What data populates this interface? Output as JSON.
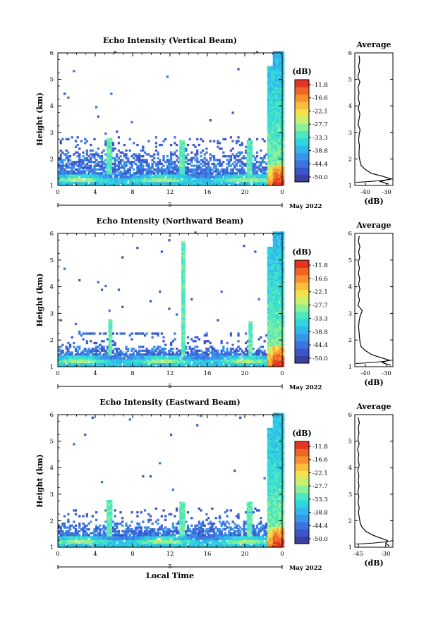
{
  "chart_data": [
    {
      "type": "heatmap",
      "title": "Echo Intensity (Vertical Beam)",
      "ylabel": "Height (km)",
      "ylim": [
        1,
        6
      ],
      "yticks": [
        "1",
        "2",
        "3",
        "4",
        "5",
        "6"
      ],
      "xlim": [
        0,
        24
      ],
      "xticks": [
        "0",
        "4",
        "8",
        "12",
        "16",
        "20",
        "0"
      ],
      "date_tick": "5",
      "date_label": "May 2022",
      "colorbar": {
        "label": "(dB)",
        "ticks": [
          "-11.8",
          "-16.6",
          "-22.1",
          "-27.7",
          "-33.3",
          "-38.8",
          "-44.4",
          "-50.0"
        ],
        "range": [
          -53,
          -8
        ]
      },
      "profile": {
        "title": "Average",
        "xlabel": "(dB)",
        "xticks": [
          "-40",
          "-30"
        ],
        "xlim": [
          -45,
          -27
        ],
        "heights": [
          1.05,
          1.15,
          1.25,
          1.35,
          1.45,
          1.6,
          1.75,
          1.9,
          2.1,
          2.3,
          2.5,
          2.7,
          2.9,
          3.1,
          3.3,
          3.5,
          3.7,
          3.9,
          4.1,
          4.3,
          4.5,
          4.7,
          4.9,
          5.1,
          5.3,
          5.5,
          5.7,
          5.9
        ],
        "values": [
          -29,
          -33,
          -28,
          -32,
          -37,
          -40,
          -42,
          -42.5,
          -43,
          -43,
          -42.8,
          -43.2,
          -43,
          -42.5,
          -43.5,
          -43,
          -42.6,
          -43.4,
          -42.8,
          -43.4,
          -43,
          -43.5,
          -42.6,
          -43.6,
          -42.8,
          -43.2,
          -42.7,
          -43
        ]
      }
    },
    {
      "type": "heatmap",
      "title": "Echo Intensity (Northward Beam)",
      "ylabel": "Height (km)",
      "ylim": [
        1,
        6
      ],
      "yticks": [
        "1",
        "2",
        "3",
        "4",
        "5",
        "6"
      ],
      "xlim": [
        0,
        24
      ],
      "xticks": [
        "0",
        "4",
        "8",
        "12",
        "16",
        "20",
        "0"
      ],
      "date_tick": "5",
      "date_label": "May 2022",
      "colorbar": {
        "label": "(dB)",
        "ticks": [
          "-11.8",
          "-16.6",
          "-22.1",
          "-27.7",
          "-33.3",
          "-38.8",
          "-44.4",
          "-50.0"
        ],
        "range": [
          -53,
          -8
        ]
      },
      "profile": {
        "title": "Average",
        "xlabel": "(dB)",
        "xticks": [
          "-40",
          "-30"
        ],
        "xlim": [
          -45,
          -27
        ],
        "heights": [
          1.05,
          1.15,
          1.25,
          1.35,
          1.45,
          1.6,
          1.75,
          1.9,
          2.1,
          2.3,
          2.5,
          2.7,
          2.9,
          3.1,
          3.3,
          3.5,
          3.7,
          3.9,
          4.1,
          4.3,
          4.5,
          4.7,
          4.9,
          5.1,
          5.3,
          5.5,
          5.7,
          5.9
        ],
        "values": [
          -28,
          -32,
          -29,
          -33,
          -37,
          -40,
          -42,
          -42.5,
          -42.8,
          -43,
          -43.2,
          -43,
          -42.5,
          -41.5,
          -43.5,
          -42.8,
          -43.4,
          -42.6,
          -43.2,
          -42.7,
          -43.3,
          -42.8,
          -43.4,
          -42.7,
          -43.2,
          -42.6,
          -43.3,
          -42.9
        ]
      }
    },
    {
      "type": "heatmap",
      "title": "Echo Intensity (Eastward Beam)",
      "ylabel": "Height (km)",
      "xlabel": "Local Time",
      "ylim": [
        1,
        6
      ],
      "yticks": [
        "1",
        "2",
        "3",
        "4",
        "5",
        "6"
      ],
      "xlim": [
        0,
        24
      ],
      "xticks": [
        "0",
        "4",
        "8",
        "12",
        "16",
        "20",
        "0"
      ],
      "date_tick": "5",
      "date_label": "May 2022",
      "colorbar": {
        "label": "(dB)",
        "ticks": [
          "-11.8",
          "-16.6",
          "-22.1",
          "-27.7",
          "-33.3",
          "-38.8",
          "-44.4",
          "-50.0"
        ],
        "range": [
          -53,
          -8
        ]
      },
      "profile": {
        "title": "Average",
        "xlabel": "(dB)",
        "xticks": [
          "-45",
          "-30"
        ],
        "xlim": [
          -47,
          -26
        ],
        "heights": [
          1.05,
          1.15,
          1.25,
          1.35,
          1.45,
          1.6,
          1.75,
          1.9,
          2.1,
          2.3,
          2.5,
          2.7,
          2.9,
          3.1,
          3.3,
          3.5,
          3.7,
          3.9,
          4.1,
          4.3,
          4.5,
          4.7,
          4.9,
          5.1,
          5.3,
          5.5,
          5.7,
          5.9
        ],
        "values": [
          -28,
          -30,
          -29,
          -33,
          -37,
          -41,
          -43,
          -44,
          -44.5,
          -45,
          -44.6,
          -45.2,
          -44.8,
          -45.3,
          -44.7,
          -45.1,
          -44.8,
          -45.4,
          -44.6,
          -45.2,
          -44.8,
          -45.5,
          -44.6,
          -45.3,
          -44.7,
          -45.1,
          -44.5,
          -45.2
        ]
      }
    }
  ],
  "colors": {
    "scale": [
      "#3b3f9e",
      "#3d55c9",
      "#3d73e0",
      "#3a95ea",
      "#33b7ea",
      "#2fd6df",
      "#4be6c2",
      "#8af09a",
      "#c6f06e",
      "#f1e24e",
      "#fbbd3c",
      "#f7922e",
      "#ef6526",
      "#e43522"
    ],
    "nodata": "#ffffff"
  }
}
